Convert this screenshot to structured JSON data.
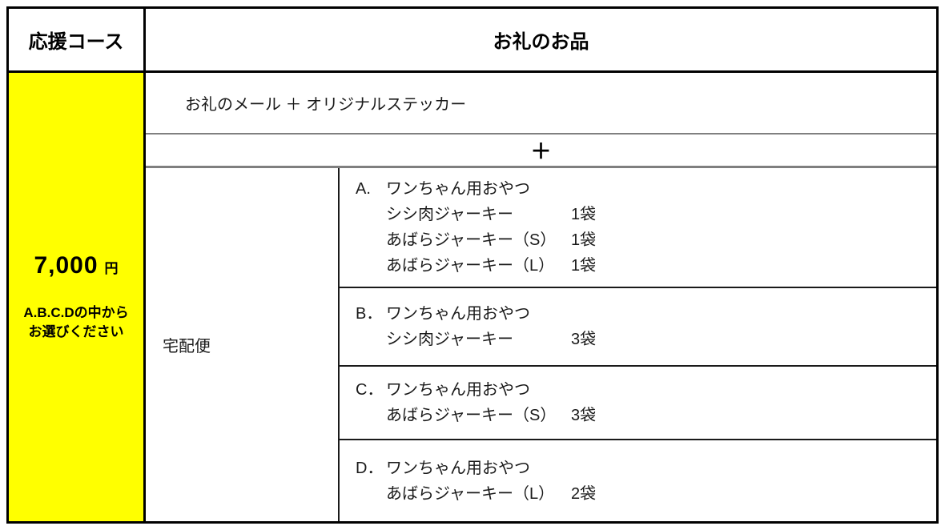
{
  "colors": {
    "highlight_yellow": "#ffff00",
    "outer_border": "#000000",
    "separator_gray": "#808080",
    "inner_line_dark": "#1a1a1a"
  },
  "header": {
    "course_label": "応援コース",
    "reward_label": "お礼のお品"
  },
  "course": {
    "price": "7,000",
    "currency": "円",
    "note_line1": "A.B.C.Dの中から",
    "note_line2": "お選びください"
  },
  "rewards": {
    "base": "お礼のメール ＋ オリジナルステッカー",
    "plus": "＋",
    "delivery": "宅配便",
    "options": [
      {
        "letter": "A.",
        "title": "ワンちゃん用おやつ",
        "items": [
          {
            "name": "シシ肉ジャーキー",
            "qty": "1袋"
          },
          {
            "name": "あばらジャーキー（S）",
            "qty": "1袋"
          },
          {
            "name": "あばらジャーキー（L）",
            "qty": "1袋"
          }
        ]
      },
      {
        "letter": "B．",
        "title": "ワンちゃん用おやつ",
        "items": [
          {
            "name": "シシ肉ジャーキー",
            "qty": "3袋"
          }
        ]
      },
      {
        "letter": "C．",
        "title": "ワンちゃん用おやつ",
        "items": [
          {
            "name": "あばらジャーキー（S）",
            "qty": "3袋"
          }
        ]
      },
      {
        "letter": "D．",
        "title": "ワンちゃん用おやつ",
        "items": [
          {
            "name": "あばらジャーキー（L）",
            "qty": "2袋"
          }
        ]
      }
    ]
  }
}
